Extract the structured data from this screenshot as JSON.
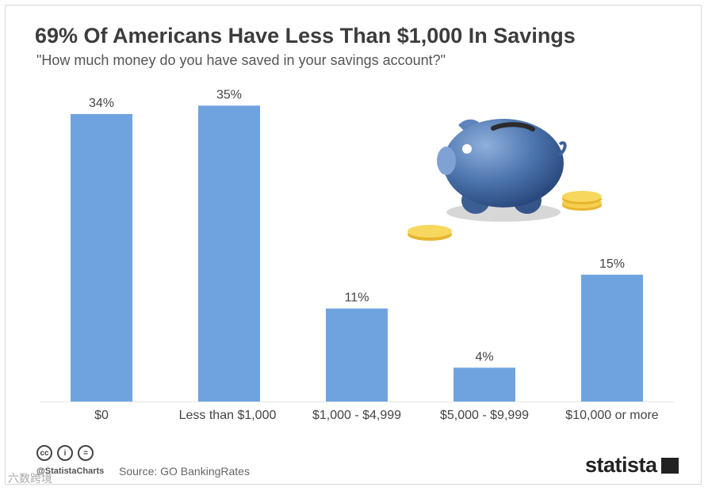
{
  "header": {
    "title": "69% Of Americans Have Less Than $1,000 In Savings",
    "subtitle": "\"How much money do you have saved in your savings account?\""
  },
  "chart_data": {
    "type": "bar",
    "title": "69% Of Americans Have Less Than $1,000 In Savings",
    "subtitle": "\"How much money do you have saved in your savings account?\"",
    "categories": [
      "$0",
      "Less than $1,000",
      "$1,000 - $4,999",
      "$5,000 - $9,999",
      "$10,000 or more"
    ],
    "values": [
      34,
      35,
      11,
      4,
      15
    ],
    "data_labels": [
      "34%",
      "35%",
      "11%",
      "4%",
      "15%"
    ],
    "unit": "%",
    "ylim": [
      0,
      37
    ],
    "grid": false,
    "legend": "none",
    "bar_color": "#6fa3df"
  },
  "footer": {
    "handle": "@StatistaCharts",
    "source": "Source: GO BankingRates",
    "brand": "statista",
    "watermark": "六数跨境",
    "icons": [
      "cc-icon",
      "by-icon",
      "nd-icon"
    ]
  },
  "colors": {
    "bar": "#6fa3df",
    "title": "#3c3c3c",
    "coin": "#f3c740",
    "piggy": "#4a6fa5"
  }
}
